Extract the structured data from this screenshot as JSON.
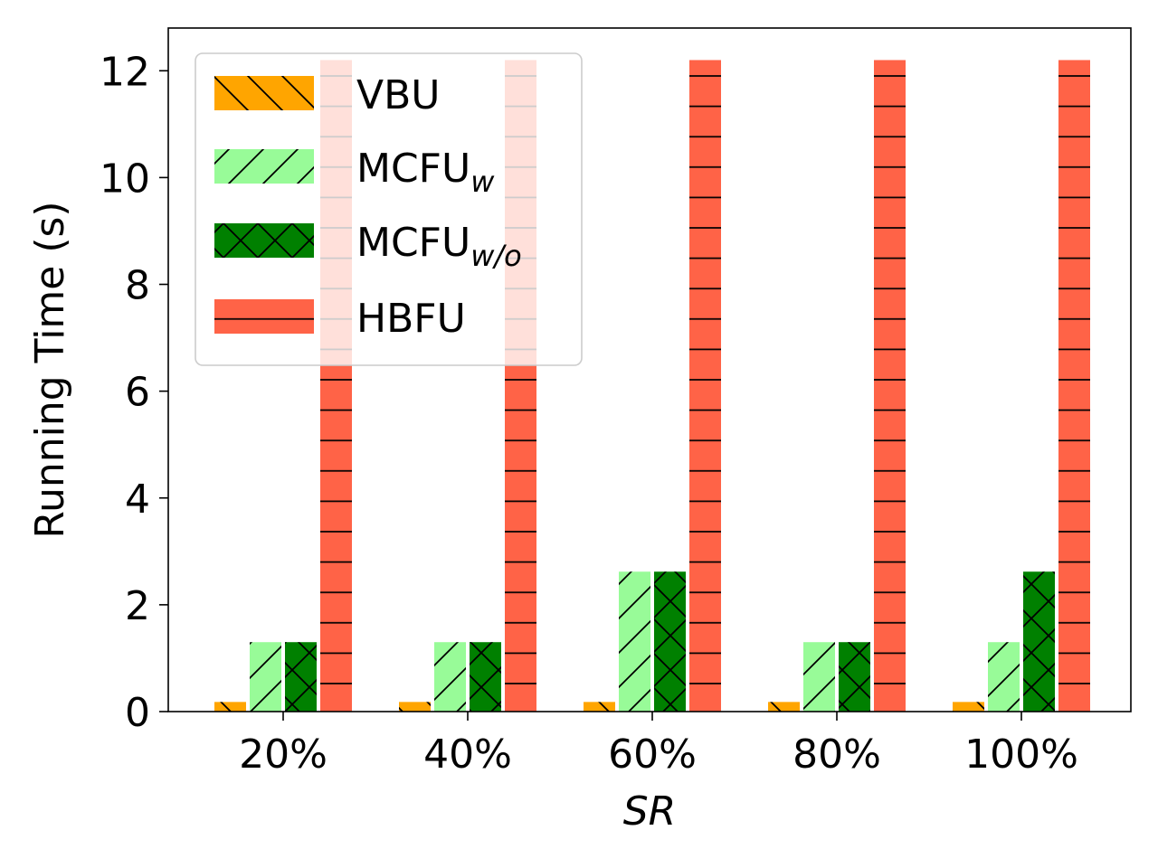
{
  "chart_data": {
    "type": "bar",
    "title": "",
    "xlabel": "SR",
    "ylabel": "Running Time (s)",
    "categories": [
      "20%",
      "40%",
      "60%",
      "80%",
      "100%"
    ],
    "ylim": [
      0,
      12.8
    ],
    "yticks": [
      0,
      2,
      4,
      6,
      8,
      10,
      12
    ],
    "grid": false,
    "legend_position": "top-left",
    "series": [
      {
        "name": "VBU",
        "legend_main": "VBU",
        "legend_sub": "",
        "values": [
          0.18,
          0.18,
          0.18,
          0.18,
          0.18
        ],
        "color": "#FFA500",
        "hatch": "backslash"
      },
      {
        "name": "MCFUw",
        "legend_main": "MCFU",
        "legend_sub": "w",
        "values": [
          1.3,
          1.3,
          2.62,
          1.3,
          1.3
        ],
        "color": "#98FB98",
        "hatch": "slash"
      },
      {
        "name": "MCFUw/o",
        "legend_main": "MCFU",
        "legend_sub": "w/o",
        "values": [
          1.3,
          1.3,
          2.62,
          1.3,
          2.62
        ],
        "color": "#008000",
        "hatch": "cross"
      },
      {
        "name": "HBFU",
        "legend_main": "HBFU",
        "legend_sub": "",
        "values": [
          12.2,
          12.2,
          12.2,
          12.2,
          12.2
        ],
        "color": "#FF6347",
        "hatch": "horizontal"
      }
    ]
  }
}
